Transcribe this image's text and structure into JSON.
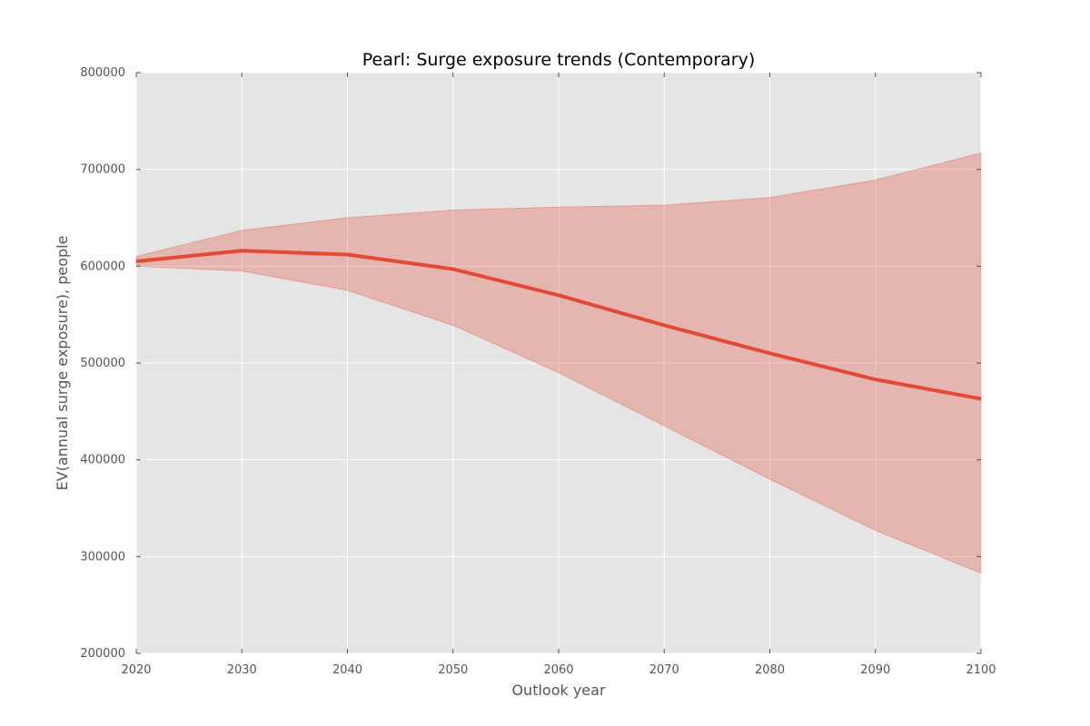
{
  "chart_data": {
    "type": "area",
    "title": "Pearl: Surge exposure trends (Contemporary)",
    "xlabel": "Outlook year",
    "ylabel": "EV(annual surge exposure), people",
    "xlim": [
      2020,
      2100
    ],
    "ylim": [
      200000,
      800000
    ],
    "x_ticks": [
      2020,
      2030,
      2040,
      2050,
      2060,
      2070,
      2080,
      2090,
      2100
    ],
    "y_ticks": [
      200000,
      300000,
      400000,
      500000,
      600000,
      700000,
      800000
    ],
    "grid": true,
    "x": [
      2020,
      2030,
      2040,
      2050,
      2060,
      2070,
      2080,
      2090,
      2100
    ],
    "series": [
      {
        "values": [
          605000,
          616000,
          612000,
          597000,
          570000,
          539000,
          510000,
          483000,
          463000
        ],
        "lower": [
          600000,
          595000,
          575000,
          539000,
          490000,
          435000,
          380000,
          327000,
          283000
        ],
        "upper": [
          610000,
          637000,
          650000,
          658000,
          661000,
          663000,
          671000,
          689000,
          717000
        ],
        "color": "#e24a33",
        "band_color": "#e24a33"
      }
    ],
    "colors": {
      "plot_background": "#e5e5e5",
      "grid": "#ffffff",
      "tick_text": "#555555"
    }
  }
}
